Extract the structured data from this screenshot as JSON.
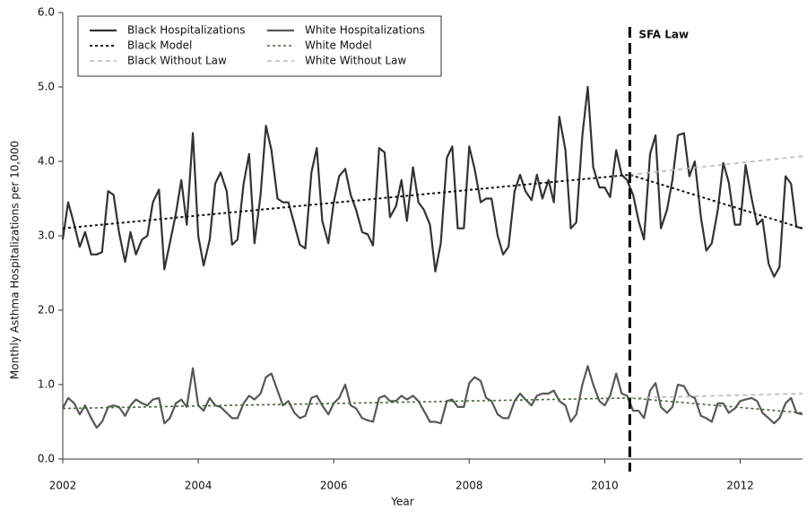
{
  "chart_data": {
    "type": "line",
    "x_label": "Year",
    "y_label": "Monthly Asthma Hospitalizations per 10,000",
    "x": [
      2002,
      2002.08,
      2002.17,
      2002.25,
      2002.33,
      2002.42,
      2002.5,
      2002.58,
      2002.67,
      2002.75,
      2002.83,
      2002.92,
      2003,
      2003.08,
      2003.17,
      2003.25,
      2003.33,
      2003.42,
      2003.5,
      2003.58,
      2003.67,
      2003.75,
      2003.83,
      2003.92,
      2004,
      2004.08,
      2004.17,
      2004.25,
      2004.33,
      2004.42,
      2004.5,
      2004.58,
      2004.67,
      2004.75,
      2004.83,
      2004.92,
      2005,
      2005.08,
      2005.17,
      2005.25,
      2005.33,
      2005.42,
      2005.5,
      2005.58,
      2005.67,
      2005.75,
      2005.83,
      2005.92,
      2006,
      2006.08,
      2006.17,
      2006.25,
      2006.33,
      2006.42,
      2006.5,
      2006.58,
      2006.67,
      2006.75,
      2006.83,
      2006.92,
      2007,
      2007.08,
      2007.17,
      2007.25,
      2007.33,
      2007.42,
      2007.5,
      2007.58,
      2007.67,
      2007.75,
      2007.83,
      2007.92,
      2008,
      2008.08,
      2008.17,
      2008.25,
      2008.33,
      2008.42,
      2008.5,
      2008.58,
      2008.67,
      2008.75,
      2008.83,
      2008.92,
      2009,
      2009.08,
      2009.17,
      2009.25,
      2009.33,
      2009.42,
      2009.5,
      2009.58,
      2009.67,
      2009.75,
      2009.83,
      2009.92,
      2010,
      2010.08,
      2010.17,
      2010.25,
      2010.33,
      2010.42,
      2010.5,
      2010.58,
      2010.67,
      2010.75,
      2010.83,
      2010.92,
      2011,
      2011.08,
      2011.17,
      2011.25,
      2011.33,
      2011.42,
      2011.5,
      2011.58,
      2011.67,
      2011.75,
      2011.83,
      2011.92,
      2012,
      2012.08,
      2012.17,
      2012.25,
      2012.33,
      2012.42,
      2012.5,
      2012.58,
      2012.67,
      2012.75,
      2012.83,
      2012.92
    ],
    "series": [
      {
        "name": "Black Hospitalizations",
        "color": "#333333",
        "style": "solid",
        "width": 2.2,
        "values": [
          2.95,
          3.45,
          3.15,
          2.85,
          3.05,
          2.75,
          2.75,
          2.78,
          3.6,
          3.55,
          3.05,
          2.65,
          3.05,
          2.75,
          2.95,
          3.0,
          3.45,
          3.62,
          2.55,
          2.9,
          3.3,
          3.75,
          3.15,
          4.38,
          3.0,
          2.6,
          2.95,
          3.7,
          3.85,
          3.6,
          2.88,
          2.95,
          3.7,
          4.1,
          2.9,
          3.55,
          4.48,
          4.15,
          3.5,
          3.45,
          3.45,
          3.15,
          2.88,
          2.83,
          3.85,
          4.18,
          3.2,
          2.9,
          3.45,
          3.8,
          3.9,
          3.55,
          3.35,
          3.05,
          3.02,
          2.87,
          4.18,
          4.12,
          3.25,
          3.4,
          3.75,
          3.2,
          3.92,
          3.45,
          3.35,
          3.15,
          2.52,
          2.9,
          4.05,
          4.2,
          3.1,
          3.1,
          4.2,
          3.9,
          3.45,
          3.5,
          3.5,
          3.0,
          2.75,
          2.85,
          3.6,
          3.82,
          3.6,
          3.48,
          3.82,
          3.5,
          3.75,
          3.45,
          4.6,
          4.15,
          3.1,
          3.18,
          4.35,
          5.0,
          3.92,
          3.65,
          3.65,
          3.52,
          4.15,
          3.82,
          3.75,
          3.55,
          3.2,
          2.95,
          4.1,
          4.35,
          3.1,
          3.35,
          3.75,
          4.35,
          4.38,
          3.8,
          4.0,
          3.25,
          2.8,
          2.9,
          3.35,
          3.98,
          3.72,
          3.15,
          3.15,
          3.95,
          3.5,
          3.15,
          3.22,
          2.62,
          2.45,
          2.58,
          3.8,
          3.7,
          3.12,
          3.1
        ]
      },
      {
        "name": "Black Model",
        "color": "#111111",
        "style": "dotted",
        "width": 2,
        "x": [
          2002,
          2010.37,
          2012.92
        ],
        "values": [
          3.1,
          3.82,
          3.1
        ]
      },
      {
        "name": "Black Without Law",
        "color": "#b8b8b8",
        "style": "dashed",
        "width": 1.6,
        "x": [
          2010.37,
          2012.92
        ],
        "values": [
          3.82,
          4.07
        ]
      },
      {
        "name": "White Hospitalizations",
        "color": "#555a55",
        "style": "solid",
        "width": 2.2,
        "values": [
          0.68,
          0.82,
          0.75,
          0.6,
          0.72,
          0.55,
          0.42,
          0.5,
          0.7,
          0.72,
          0.7,
          0.58,
          0.72,
          0.8,
          0.75,
          0.72,
          0.8,
          0.82,
          0.48,
          0.55,
          0.75,
          0.8,
          0.7,
          1.22,
          0.72,
          0.65,
          0.82,
          0.72,
          0.7,
          0.62,
          0.55,
          0.55,
          0.75,
          0.85,
          0.8,
          0.88,
          1.1,
          1.15,
          0.92,
          0.72,
          0.78,
          0.62,
          0.55,
          0.58,
          0.82,
          0.85,
          0.72,
          0.6,
          0.75,
          0.82,
          1.0,
          0.72,
          0.68,
          0.55,
          0.52,
          0.5,
          0.82,
          0.85,
          0.78,
          0.78,
          0.85,
          0.8,
          0.85,
          0.78,
          0.65,
          0.5,
          0.5,
          0.48,
          0.78,
          0.8,
          0.7,
          0.7,
          1.02,
          1.1,
          1.05,
          0.82,
          0.78,
          0.6,
          0.55,
          0.55,
          0.78,
          0.88,
          0.8,
          0.72,
          0.85,
          0.88,
          0.88,
          0.92,
          0.78,
          0.72,
          0.5,
          0.6,
          1.0,
          1.25,
          1.0,
          0.78,
          0.72,
          0.85,
          1.15,
          0.88,
          0.85,
          0.65,
          0.65,
          0.55,
          0.92,
          1.02,
          0.7,
          0.62,
          0.7,
          1.0,
          0.98,
          0.85,
          0.82,
          0.58,
          0.55,
          0.5,
          0.75,
          0.75,
          0.62,
          0.68,
          0.78,
          0.8,
          0.82,
          0.78,
          0.62,
          0.55,
          0.48,
          0.55,
          0.75,
          0.82,
          0.62,
          0.6
        ]
      },
      {
        "name": "White Model",
        "color": "#3f6b35",
        "style": "dotted",
        "width": 1.6,
        "x": [
          2002,
          2010.37,
          2012.92
        ],
        "values": [
          0.68,
          0.82,
          0.62
        ]
      },
      {
        "name": "White Without Law",
        "color": "#b8b8b8",
        "style": "dashed",
        "width": 1.6,
        "x": [
          2010.37,
          2012.92
        ],
        "values": [
          0.82,
          0.88
        ]
      }
    ],
    "annotation": {
      "text": "SFA Law",
      "x": 2010.37
    },
    "xlim": [
      2002,
      2012.92
    ],
    "ylim": [
      0,
      6
    ],
    "xticks": [
      2002,
      2004,
      2006,
      2008,
      2010,
      2012
    ],
    "yticks": [
      {
        "value": 0,
        "label": "0.0"
      },
      {
        "value": 1,
        "label": "1.0"
      },
      {
        "value": 2,
        "label": "2.0"
      },
      {
        "value": 3,
        "label": "3.0"
      },
      {
        "value": 4,
        "label": "4.0"
      },
      {
        "value": 5,
        "label": "5.0"
      },
      {
        "value": 6,
        "label": "6.0"
      }
    ],
    "legend": "upper-left"
  }
}
